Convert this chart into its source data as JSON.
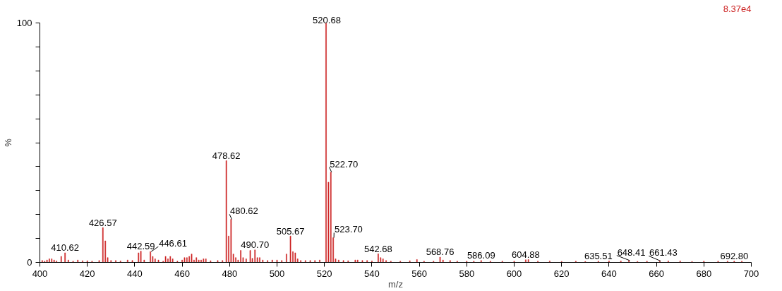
{
  "chart_data": {
    "type": "bar",
    "xlabel": "m/z",
    "ylabel": "%",
    "color": "#cc2222",
    "x": [
      401,
      402,
      403,
      404,
      405,
      406,
      407,
      409,
      410.62,
      412,
      414,
      416,
      418,
      420,
      422,
      425,
      426.57,
      427.6,
      428.6,
      430,
      432,
      434,
      437,
      439,
      441.6,
      442.59,
      444,
      446.61,
      447.6,
      448.6,
      450,
      452,
      453,
      454,
      455,
      456,
      458,
      460,
      461,
      462,
      463,
      464,
      465,
      466,
      467,
      468,
      469,
      470,
      472,
      475,
      477,
      478.62,
      479.6,
      480.62,
      481.6,
      482.6,
      483.6,
      484.7,
      485.7,
      487,
      488.7,
      489.6,
      490.7,
      491.7,
      492.7,
      494,
      496,
      498,
      500,
      502,
      504,
      505.67,
      506.7,
      507.7,
      508.7,
      510,
      512,
      514,
      516,
      518,
      520.68,
      521.7,
      522.7,
      523.7,
      524.7,
      526,
      528,
      530,
      533,
      534,
      536,
      538,
      540,
      542.68,
      543.7,
      544.7,
      546,
      548,
      552,
      556,
      559,
      562,
      566,
      568.76,
      570,
      573,
      576,
      580,
      583,
      586.09,
      590,
      595,
      600,
      604.88,
      606,
      610,
      615,
      620,
      626,
      630,
      635.51,
      640,
      645,
      648.41,
      652,
      656,
      661.43,
      665,
      670,
      675,
      680,
      686,
      690,
      692.8,
      696
    ],
    "values": [
      0.8,
      0.5,
      1,
      1.5,
      1.5,
      1,
      0.6,
      2.5,
      4,
      1,
      0.5,
      1,
      0.7,
      0.7,
      0.5,
      0.8,
      14.5,
      9,
      2,
      0.8,
      0.8,
      0.6,
      1,
      0.8,
      4,
      4.7,
      1,
      4.5,
      2.5,
      1.5,
      1,
      0.5,
      2.5,
      1.5,
      2.5,
      1.5,
      0.5,
      1,
      2,
      2,
      2.5,
      3.5,
      1,
      2,
      1,
      1,
      1.5,
      1.5,
      0.7,
      0.8,
      0.8,
      42.5,
      11,
      18,
      3.5,
      2,
      1,
      5,
      2,
      1.5,
      5,
      1.7,
      5.2,
      2,
      2,
      1,
      0.8,
      1,
      1,
      0.8,
      3.5,
      11,
      4.5,
      4,
      1.5,
      0.8,
      0.8,
      0.8,
      0.8,
      1,
      100,
      33.5,
      37.7,
      10.3,
      1.5,
      1,
      0.8,
      0.7,
      1,
      1,
      0.8,
      0.8,
      0.6,
      3.6,
      2,
      1.5,
      0.8,
      0.5,
      0.5,
      0.7,
      1.2,
      0.5,
      0.5,
      2.2,
      1,
      0.8,
      0.5,
      0.5,
      0.5,
      0.8,
      0.5,
      0.5,
      0.5,
      1.1,
      1.2,
      0.5,
      0.6,
      0.4,
      0.5,
      0.4,
      0.5,
      0.6,
      0.6,
      0.8,
      0.4,
      0.5,
      0.6,
      0.6,
      0.6,
      0.4,
      0.5,
      0.5,
      0.5,
      0.5,
      0.5
    ],
    "xlim": [
      400,
      700
    ],
    "ylim": [
      0,
      100
    ],
    "xticks": [
      400,
      420,
      440,
      460,
      480,
      500,
      520,
      540,
      560,
      580,
      600,
      620,
      640,
      660,
      680,
      700
    ],
    "yticks": [
      0,
      {
        "value": 10,
        "label": null
      },
      {
        "value": 20,
        "label": null
      },
      {
        "value": 30,
        "label": null
      },
      {
        "value": 40,
        "label": null
      },
      {
        "value": 50,
        "label": null
      },
      {
        "value": 60,
        "label": null
      },
      {
        "value": 70,
        "label": null
      },
      {
        "value": 80,
        "label": null
      },
      {
        "value": 90,
        "label": null
      },
      100
    ],
    "grid": false,
    "annotations": [
      {
        "text": "410.62",
        "x": 410.62,
        "y": 4
      },
      {
        "text": "426.57",
        "x": 426.57,
        "y": 14.5
      },
      {
        "text": "442.59",
        "x": 442.59,
        "y": 4.7
      },
      {
        "text": "446.61",
        "x": 446.61,
        "y": 4.5
      },
      {
        "text": "478.62",
        "x": 478.62,
        "y": 42.5
      },
      {
        "text": "480.62",
        "x": 480.62,
        "y": 18
      },
      {
        "text": "490.70",
        "x": 490.7,
        "y": 5.2
      },
      {
        "text": "505.67",
        "x": 505.67,
        "y": 11
      },
      {
        "text": "520.68",
        "x": 520.68,
        "y": 100
      },
      {
        "text": "522.70",
        "x": 522.7,
        "y": 37.7
      },
      {
        "text": "523.70",
        "x": 523.7,
        "y": 10.3
      },
      {
        "text": "542.68",
        "x": 542.68,
        "y": 3.6
      },
      {
        "text": "568.76",
        "x": 568.76,
        "y": 2.2
      },
      {
        "text": "586.09",
        "x": 586.09,
        "y": 0.8
      },
      {
        "text": "604.88",
        "x": 604.88,
        "y": 1.1
      },
      {
        "text": "635.51",
        "x": 635.51,
        "y": 0.5
      },
      {
        "text": "648.41",
        "x": 648.41,
        "y": 0.8
      },
      {
        "text": "661.43",
        "x": 661.43,
        "y": 0.6
      },
      {
        "text": "692.80",
        "x": 692.8,
        "y": 0.5
      },
      "8.37e4"
    ]
  }
}
